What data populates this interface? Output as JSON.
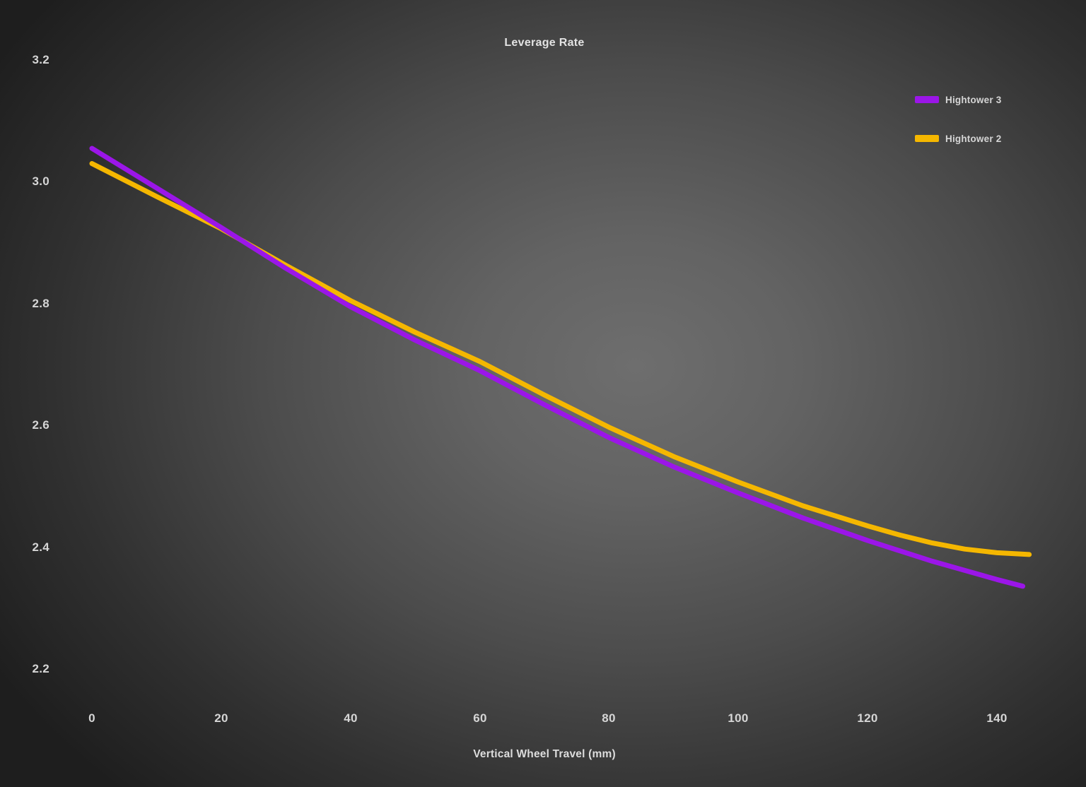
{
  "chart_data": {
    "type": "line",
    "title": "Leverage Rate",
    "xlabel": "Vertical Wheel Travel (mm)",
    "ylabel": "",
    "xlim": [
      0,
      145
    ],
    "ylim": [
      2.2,
      3.2
    ],
    "x_ticks": [
      0,
      20,
      40,
      60,
      80,
      100,
      120,
      140
    ],
    "y_ticks": [
      3.2,
      3.0,
      2.8,
      2.6,
      2.4,
      2.2
    ],
    "grid": false,
    "legend_position": "top-right",
    "series": [
      {
        "name": "Hightower 3",
        "color": "#9b16e8",
        "x": [
          0,
          10,
          20,
          30,
          40,
          50,
          60,
          70,
          80,
          90,
          100,
          110,
          120,
          130,
          140,
          144
        ],
        "y": [
          3.055,
          2.99,
          2.925,
          2.858,
          2.795,
          2.74,
          2.69,
          2.634,
          2.58,
          2.532,
          2.489,
          2.448,
          2.411,
          2.377,
          2.347,
          2.336
        ]
      },
      {
        "name": "Hightower 2",
        "color": "#f5b700",
        "x": [
          0,
          10,
          20,
          30,
          40,
          50,
          60,
          70,
          80,
          90,
          100,
          110,
          120,
          125,
          130,
          135,
          140,
          145
        ],
        "y": [
          3.03,
          2.976,
          2.923,
          2.863,
          2.805,
          2.753,
          2.705,
          2.65,
          2.597,
          2.549,
          2.507,
          2.468,
          2.435,
          2.42,
          2.407,
          2.397,
          2.391,
          2.388
        ]
      }
    ]
  },
  "colors": {
    "background_center": "#6e6e6e",
    "background_edge": "#1d1d1d",
    "text": "#d6d6d6"
  }
}
